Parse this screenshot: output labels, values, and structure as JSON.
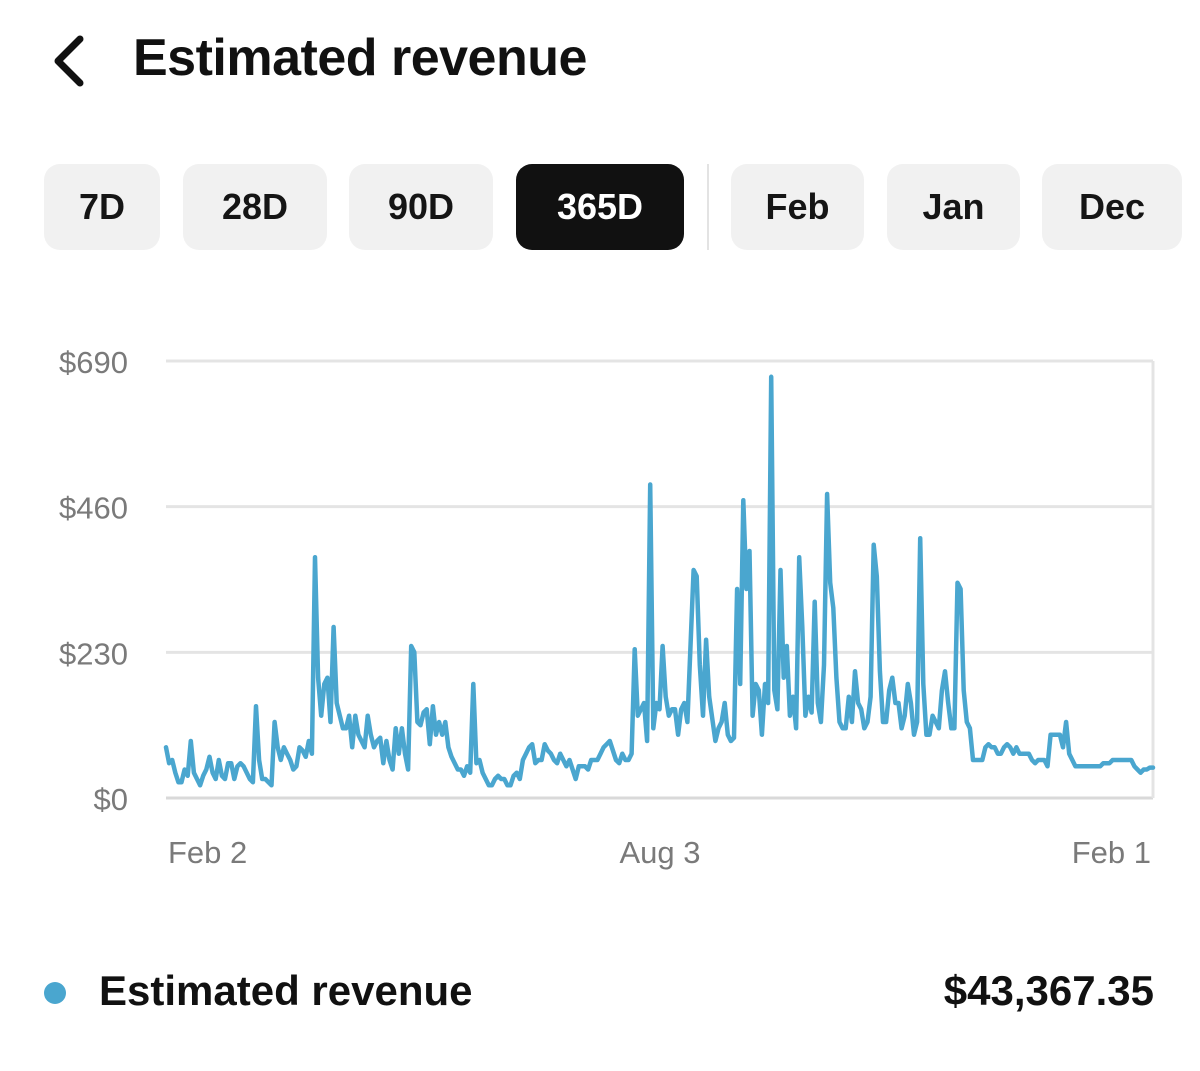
{
  "header": {
    "title": "Estimated revenue",
    "back_icon": "chevron-left-icon"
  },
  "range_chips": {
    "items": [
      "7D",
      "28D",
      "90D",
      "365D",
      "Feb",
      "Jan",
      "Dec"
    ],
    "selected": "365D"
  },
  "chart_data": {
    "type": "line",
    "title": "Estimated revenue",
    "xlabel": "",
    "ylabel": "",
    "x_tick_labels": [
      "Feb 2",
      "Aug 3",
      "Feb 1"
    ],
    "y_tick_labels": [
      "$0",
      "$230",
      "$460",
      "$690"
    ],
    "y_ticks": [
      0,
      230,
      460,
      690
    ],
    "ylim": [
      0,
      690
    ],
    "grid": true,
    "color": "#4aa6cf",
    "series": [
      {
        "name": "Estimated revenue",
        "values": [
          80,
          55,
          60,
          40,
          25,
          25,
          45,
          35,
          90,
          40,
          30,
          20,
          35,
          45,
          65,
          40,
          30,
          60,
          35,
          30,
          55,
          55,
          30,
          50,
          55,
          50,
          40,
          30,
          25,
          145,
          60,
          30,
          30,
          25,
          20,
          120,
          80,
          60,
          80,
          70,
          60,
          45,
          50,
          80,
          75,
          65,
          90,
          70,
          380,
          190,
          130,
          180,
          190,
          120,
          270,
          150,
          130,
          110,
          110,
          130,
          80,
          130,
          100,
          90,
          80,
          130,
          100,
          80,
          90,
          95,
          55,
          90,
          60,
          45,
          110,
          70,
          110,
          70,
          45,
          240,
          230,
          120,
          115,
          135,
          140,
          85,
          145,
          100,
          120,
          100,
          120,
          80,
          65,
          55,
          45,
          45,
          35,
          50,
          40,
          180,
          55,
          60,
          40,
          30,
          20,
          20,
          30,
          35,
          30,
          30,
          20,
          20,
          35,
          40,
          30,
          60,
          70,
          80,
          85,
          55,
          60,
          60,
          85,
          75,
          70,
          60,
          55,
          70,
          60,
          50,
          60,
          45,
          30,
          50,
          50,
          50,
          45,
          60,
          60,
          60,
          70,
          80,
          85,
          90,
          75,
          60,
          55,
          70,
          60,
          60,
          70,
          235,
          130,
          140,
          150,
          90,
          495,
          110,
          150,
          140,
          240,
          160,
          130,
          140,
          140,
          100,
          140,
          150,
          120,
          240,
          360,
          350,
          210,
          130,
          250,
          160,
          125,
          90,
          110,
          120,
          150,
          100,
          90,
          95,
          330,
          180,
          470,
          330,
          390,
          130,
          180,
          170,
          100,
          180,
          150,
          665,
          170,
          140,
          360,
          190,
          240,
          130,
          160,
          110,
          380,
          270,
          130,
          160,
          135,
          310,
          150,
          120,
          210,
          480,
          340,
          300,
          190,
          120,
          110,
          110,
          160,
          120,
          200,
          150,
          140,
          110,
          120,
          160,
          400,
          350,
          200,
          120,
          120,
          170,
          190,
          150,
          150,
          110,
          130,
          180,
          150,
          100,
          120,
          410,
          180,
          100,
          100,
          130,
          120,
          110,
          170,
          200,
          150,
          110,
          110,
          340,
          330,
          170,
          120,
          110,
          60,
          60,
          60,
          60,
          80,
          85,
          80,
          80,
          70,
          70,
          80,
          85,
          80,
          70,
          80,
          70,
          70,
          70,
          70,
          60,
          55,
          60,
          60,
          60,
          50,
          100,
          100,
          100,
          100,
          80,
          120,
          70,
          60,
          50,
          50,
          50,
          50,
          50,
          50,
          50,
          50,
          50,
          55,
          55,
          55,
          60,
          60,
          60,
          60,
          60,
          60,
          60,
          50,
          45,
          40,
          45,
          45,
          48,
          48
        ]
      }
    ]
  },
  "legend": {
    "label": "Estimated revenue",
    "total": "$43,367.35",
    "dot_color": "#4aa6cf"
  }
}
